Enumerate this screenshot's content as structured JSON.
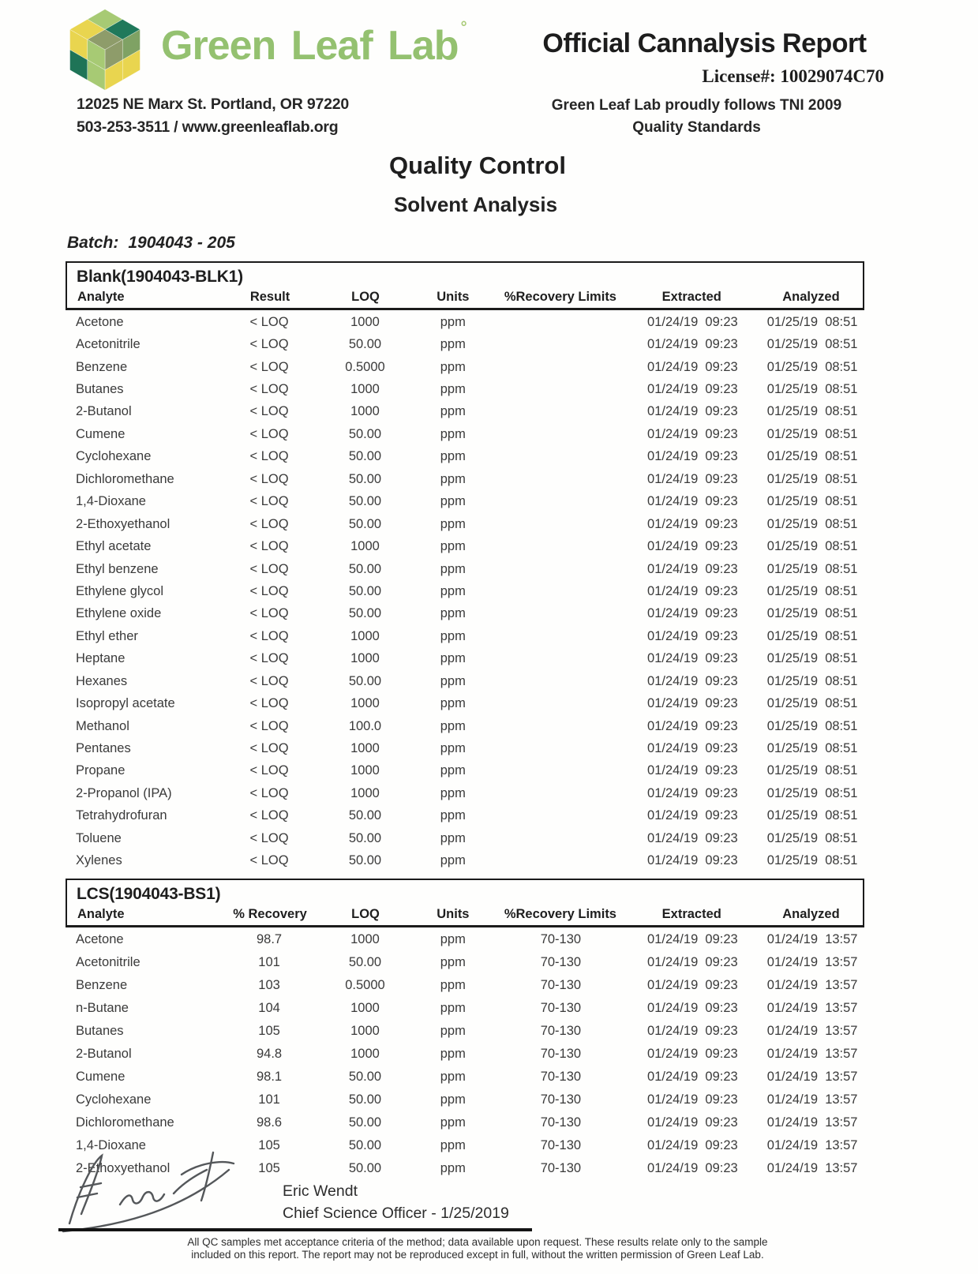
{
  "header": {
    "brand": "Green Leaf Lab",
    "brand_mark": "°",
    "address_line1": "12025 NE Marx St. Portland, OR 97220",
    "address_line2": "503-253-3511 / www.greenleaflab.org",
    "report_title": "Official Cannalysis Report",
    "license": "License#: 10029074C70",
    "tni_line1": "Green Leaf Lab proudly follows TNI 2009",
    "tni_line2": "Quality Standards"
  },
  "titles": {
    "main": "Quality Control",
    "sub": "Solvent Analysis"
  },
  "batch": {
    "label": "Batch:",
    "value": "1904043 - 205"
  },
  "logo": {
    "name": "green-leaf-lab-hex-cube-logo",
    "faces": {
      "t00": "#a7ca74",
      "t10": "#20795b",
      "t01": "#e9d54f",
      "t11": "#8e9c6a",
      "r01": "#7fa264",
      "r11": "#8e9c6a",
      "r00": "#e9d54f",
      "r10": "#e9d54f",
      "l01": "#e9d54f",
      "l11": "#a7ca74",
      "l00": "#1f7457",
      "l10": "#a7ca74"
    }
  },
  "tables": [
    {
      "title": "Blank(1904043-BLK1)",
      "columns": [
        "Analyte",
        "Result",
        "LOQ",
        "Units",
        "%Recovery Limits",
        "Extracted",
        "Analyzed"
      ],
      "rows": [
        [
          "Acetone",
          "< LOQ",
          "1000",
          "ppm",
          "",
          "01/24/19  09:23",
          "01/25/19  08:51"
        ],
        [
          "Acetonitrile",
          "< LOQ",
          "50.00",
          "ppm",
          "",
          "01/24/19  09:23",
          "01/25/19  08:51"
        ],
        [
          "Benzene",
          "< LOQ",
          "0.5000",
          "ppm",
          "",
          "01/24/19  09:23",
          "01/25/19  08:51"
        ],
        [
          "Butanes",
          "< LOQ",
          "1000",
          "ppm",
          "",
          "01/24/19  09:23",
          "01/25/19  08:51"
        ],
        [
          "2-Butanol",
          "< LOQ",
          "1000",
          "ppm",
          "",
          "01/24/19  09:23",
          "01/25/19  08:51"
        ],
        [
          "Cumene",
          "< LOQ",
          "50.00",
          "ppm",
          "",
          "01/24/19  09:23",
          "01/25/19  08:51"
        ],
        [
          "Cyclohexane",
          "< LOQ",
          "50.00",
          "ppm",
          "",
          "01/24/19  09:23",
          "01/25/19  08:51"
        ],
        [
          "Dichloromethane",
          "< LOQ",
          "50.00",
          "ppm",
          "",
          "01/24/19  09:23",
          "01/25/19  08:51"
        ],
        [
          "1,4-Dioxane",
          "< LOQ",
          "50.00",
          "ppm",
          "",
          "01/24/19  09:23",
          "01/25/19  08:51"
        ],
        [
          "2-Ethoxyethanol",
          "< LOQ",
          "50.00",
          "ppm",
          "",
          "01/24/19  09:23",
          "01/25/19  08:51"
        ],
        [
          "Ethyl acetate",
          "< LOQ",
          "1000",
          "ppm",
          "",
          "01/24/19  09:23",
          "01/25/19  08:51"
        ],
        [
          "Ethyl benzene",
          "< LOQ",
          "50.00",
          "ppm",
          "",
          "01/24/19  09:23",
          "01/25/19  08:51"
        ],
        [
          "Ethylene glycol",
          "< LOQ",
          "50.00",
          "ppm",
          "",
          "01/24/19  09:23",
          "01/25/19  08:51"
        ],
        [
          "Ethylene oxide",
          "< LOQ",
          "50.00",
          "ppm",
          "",
          "01/24/19  09:23",
          "01/25/19  08:51"
        ],
        [
          "Ethyl ether",
          "< LOQ",
          "1000",
          "ppm",
          "",
          "01/24/19  09:23",
          "01/25/19  08:51"
        ],
        [
          "Heptane",
          "< LOQ",
          "1000",
          "ppm",
          "",
          "01/24/19  09:23",
          "01/25/19  08:51"
        ],
        [
          "Hexanes",
          "< LOQ",
          "50.00",
          "ppm",
          "",
          "01/24/19  09:23",
          "01/25/19  08:51"
        ],
        [
          "Isopropyl acetate",
          "< LOQ",
          "1000",
          "ppm",
          "",
          "01/24/19  09:23",
          "01/25/19  08:51"
        ],
        [
          "Methanol",
          "< LOQ",
          "100.0",
          "ppm",
          "",
          "01/24/19  09:23",
          "01/25/19  08:51"
        ],
        [
          "Pentanes",
          "< LOQ",
          "1000",
          "ppm",
          "",
          "01/24/19  09:23",
          "01/25/19  08:51"
        ],
        [
          "Propane",
          "< LOQ",
          "1000",
          "ppm",
          "",
          "01/24/19  09:23",
          "01/25/19  08:51"
        ],
        [
          "2-Propanol (IPA)",
          "< LOQ",
          "1000",
          "ppm",
          "",
          "01/24/19  09:23",
          "01/25/19  08:51"
        ],
        [
          "Tetrahydrofuran",
          "< LOQ",
          "50.00",
          "ppm",
          "",
          "01/24/19  09:23",
          "01/25/19  08:51"
        ],
        [
          "Toluene",
          "< LOQ",
          "50.00",
          "ppm",
          "",
          "01/24/19  09:23",
          "01/25/19  08:51"
        ],
        [
          "Xylenes",
          "< LOQ",
          "50.00",
          "ppm",
          "",
          "01/24/19  09:23",
          "01/25/19  08:51"
        ]
      ]
    },
    {
      "title": "LCS(1904043-BS1)",
      "columns": [
        "Analyte",
        "% Recovery",
        "LOQ",
        "Units",
        "%Recovery Limits",
        "Extracted",
        "Analyzed"
      ],
      "rows": [
        [
          "Acetone",
          "98.7",
          "1000",
          "ppm",
          "70-130",
          "01/24/19  09:23",
          "01/24/19  13:57"
        ],
        [
          "Acetonitrile",
          "101",
          "50.00",
          "ppm",
          "70-130",
          "01/24/19  09:23",
          "01/24/19  13:57"
        ],
        [
          "Benzene",
          "103",
          "0.5000",
          "ppm",
          "70-130",
          "01/24/19  09:23",
          "01/24/19  13:57"
        ],
        [
          "n-Butane",
          "104",
          "1000",
          "ppm",
          "70-130",
          "01/24/19  09:23",
          "01/24/19  13:57"
        ],
        [
          "Butanes",
          "105",
          "1000",
          "ppm",
          "70-130",
          "01/24/19  09:23",
          "01/24/19  13:57"
        ],
        [
          "2-Butanol",
          "94.8",
          "1000",
          "ppm",
          "70-130",
          "01/24/19  09:23",
          "01/24/19  13:57"
        ],
        [
          "Cumene",
          "98.1",
          "50.00",
          "ppm",
          "70-130",
          "01/24/19  09:23",
          "01/24/19  13:57"
        ],
        [
          "Cyclohexane",
          "101",
          "50.00",
          "ppm",
          "70-130",
          "01/24/19  09:23",
          "01/24/19  13:57"
        ],
        [
          "Dichloromethane",
          "98.6",
          "50.00",
          "ppm",
          "70-130",
          "01/24/19  09:23",
          "01/24/19  13:57"
        ],
        [
          "1,4-Dioxane",
          "105",
          "50.00",
          "ppm",
          "70-130",
          "01/24/19  09:23",
          "01/24/19  13:57"
        ],
        [
          "2-Ethoxyethanol",
          "105",
          "50.00",
          "ppm",
          "70-130",
          "01/24/19  09:23",
          "01/24/19  13:57"
        ]
      ]
    }
  ],
  "footer": {
    "signer_name": "Eric Wendt",
    "signer_title": "Chief Science Officer - 1/25/2019",
    "disclaimer_line1": "All QC samples met acceptance criteria of the method; data available upon request. These results relate only to the sample",
    "disclaimer_line2": "included on this report. The report may not be reproduced except in full, without the written permission of Green Leaf Lab."
  }
}
